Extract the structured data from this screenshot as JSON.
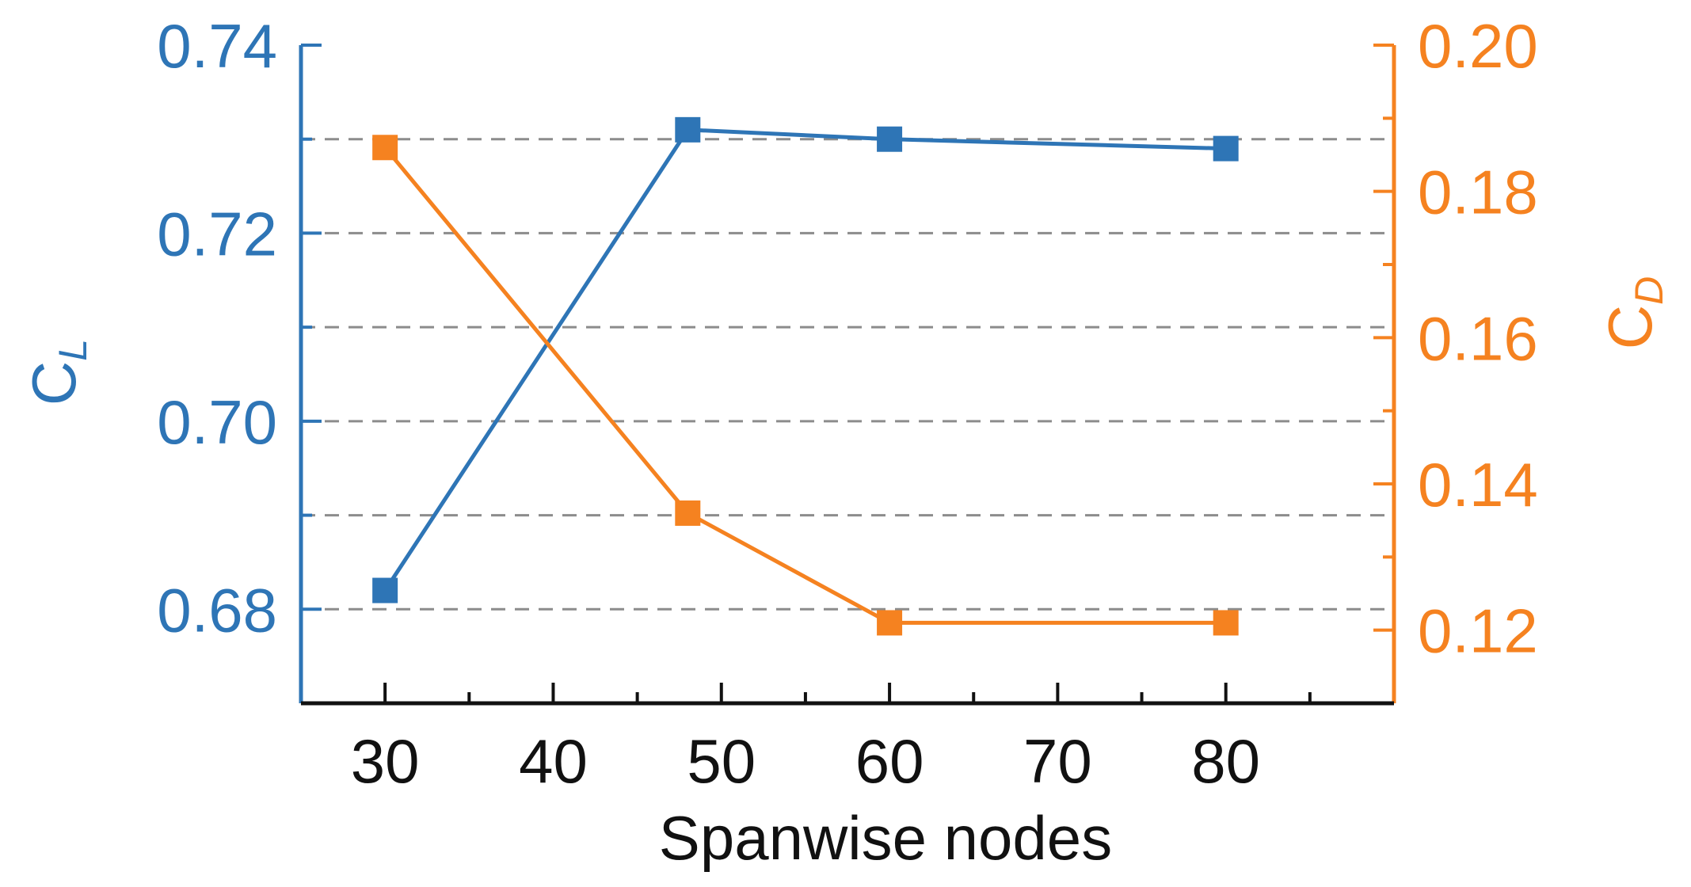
{
  "chart_data": {
    "type": "line",
    "x": [
      30,
      48,
      60,
      80
    ],
    "xlabel": "Spanwise nodes",
    "xlim": [
      25,
      90
    ],
    "xticks": [
      30,
      40,
      50,
      60,
      70,
      80
    ],
    "xtick_labels": [
      "30",
      "40",
      "50",
      "60",
      "70",
      "80"
    ],
    "series": [
      {
        "name": "C_L",
        "axis": "left",
        "color": "#2e75b6",
        "marker": "square",
        "values": [
          0.682,
          0.731,
          0.73,
          0.729
        ]
      },
      {
        "name": "C_D",
        "axis": "right",
        "color": "#f58220",
        "marker": "square",
        "values": [
          0.186,
          0.136,
          0.121,
          0.121
        ]
      }
    ],
    "y_left": {
      "label_main": "C",
      "label_sub": "L",
      "lim": [
        0.67,
        0.74
      ],
      "ticks": [
        0.68,
        0.7,
        0.72,
        0.74
      ],
      "tick_labels": [
        "0.68",
        "0.70",
        "0.72",
        "0.74"
      ],
      "gridlines": [
        0.68,
        0.69,
        0.7,
        0.71,
        0.72,
        0.73
      ],
      "color": "#2e75b6"
    },
    "y_right": {
      "label_main": "C",
      "label_sub": "D",
      "lim": [
        0.11,
        0.2
      ],
      "ticks": [
        0.12,
        0.14,
        0.16,
        0.18,
        0.2
      ],
      "tick_labels": [
        "0.12",
        "0.14",
        "0.16",
        "0.18",
        "0.20"
      ],
      "color": "#f58220"
    },
    "grid": "horizontal dashed",
    "legend": "none"
  }
}
